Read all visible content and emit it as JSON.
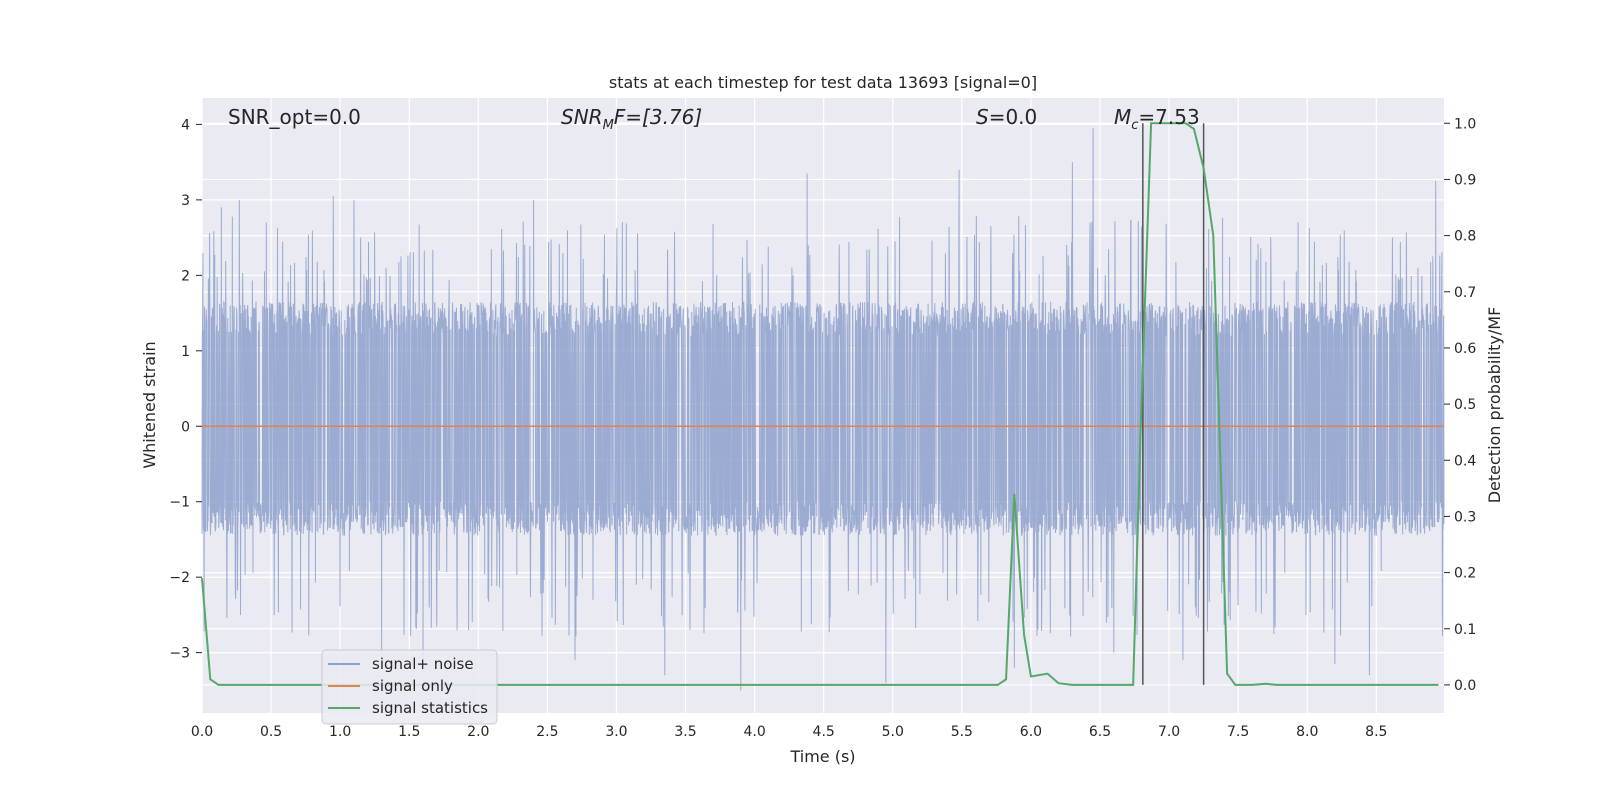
{
  "chart_data": {
    "type": "line",
    "title": "stats at each timestep for test data 13693 [signal=0]",
    "xlabel": "Time (s)",
    "ylabel_left": "Whitened strain",
    "ylabel_right": "Detection probability/MF",
    "xlim": [
      0.0,
      8.99
    ],
    "ylim_left": [
      -3.8,
      4.35
    ],
    "ylim_right": [
      -0.05,
      1.045
    ],
    "grid": true,
    "legend_placement": "lower-left",
    "xticks": [
      "0.0",
      "0.5",
      "1.0",
      "1.5",
      "2.0",
      "2.5",
      "3.0",
      "3.5",
      "4.0",
      "4.5",
      "5.0",
      "5.5",
      "6.0",
      "6.5",
      "7.0",
      "7.5",
      "8.0",
      "8.5"
    ],
    "yticks_left": [
      "4",
      "3",
      "2",
      "1",
      "0",
      "−1",
      "−2",
      "−3"
    ],
    "yticks_right": [
      "1.0",
      "0.9",
      "0.8",
      "0.7",
      "0.6",
      "0.5",
      "0.4",
      "0.3",
      "0.2",
      "0.1",
      "0.0"
    ],
    "annotations": {
      "snr_opt": "SNR_opt=0.0",
      "snr_mf_main": "SNR",
      "snr_mf_sub": "M",
      "snr_mf_rest": "F=[3.76]",
      "s_main": "S",
      "s_rest": "=0.0",
      "mc_main": "M",
      "mc_sub": "c",
      "mc_rest": "=7.53"
    },
    "vlines_x": [
      6.81,
      7.25
    ],
    "series": [
      {
        "name": "signal+ noise",
        "color": "#8da0cb",
        "kind": "noise",
        "n_points": 4096,
        "typical_range": [
          -1.4,
          1.6
        ],
        "extremes": [
          {
            "x": 0.14,
            "y": 2.9
          },
          {
            "x": 0.27,
            "y": 3.0
          },
          {
            "x": 0.95,
            "y": 3.05
          },
          {
            "x": 1.1,
            "y": 3.0
          },
          {
            "x": 1.3,
            "y": -3.0
          },
          {
            "x": 1.6,
            "y": -3.1
          },
          {
            "x": 2.4,
            "y": 3.0
          },
          {
            "x": 2.7,
            "y": -3.1
          },
          {
            "x": 3.35,
            "y": -3.3
          },
          {
            "x": 3.9,
            "y": -3.5
          },
          {
            "x": 4.38,
            "y": 3.35
          },
          {
            "x": 4.95,
            "y": -3.4
          },
          {
            "x": 5.48,
            "y": 3.4
          },
          {
            "x": 5.88,
            "y": -3.2
          },
          {
            "x": 6.3,
            "y": 3.5
          },
          {
            "x": 6.45,
            "y": 3.95
          },
          {
            "x": 6.6,
            "y": -3.0
          },
          {
            "x": 6.8,
            "y": 2.65
          },
          {
            "x": 7.1,
            "y": -3.1
          },
          {
            "x": 8.2,
            "y": -3.15
          },
          {
            "x": 8.45,
            "y": -3.3
          },
          {
            "x": 8.93,
            "y": 3.25
          }
        ]
      },
      {
        "name": "signal only",
        "color": "#dd8452",
        "kind": "flat",
        "value": 0.0
      },
      {
        "name": "signal statistics",
        "color": "#55a868",
        "kind": "line",
        "axis": "right",
        "x": [
          0.0,
          0.06,
          0.12,
          0.5,
          1.0,
          2.0,
          3.0,
          4.0,
          5.0,
          5.5,
          5.76,
          5.82,
          5.88,
          5.95,
          6.0,
          6.12,
          6.2,
          6.3,
          6.5,
          6.74,
          6.8,
          6.87,
          6.95,
          7.05,
          7.12,
          7.18,
          7.25,
          7.32,
          7.42,
          7.48,
          7.6,
          7.7,
          7.78,
          8.0,
          8.5,
          8.95
        ],
        "y": [
          0.19,
          0.01,
          0.0,
          0.0,
          0.0,
          0.0,
          0.0,
          0.0,
          0.0,
          0.0,
          0.0,
          0.01,
          0.34,
          0.09,
          0.015,
          0.02,
          0.003,
          0.0,
          0.0,
          0.0,
          0.5,
          1.0,
          1.0,
          1.0,
          1.0,
          0.99,
          0.92,
          0.8,
          0.02,
          0.0,
          0.0,
          0.002,
          0.0,
          0.0,
          0.0,
          0.0
        ]
      }
    ]
  }
}
